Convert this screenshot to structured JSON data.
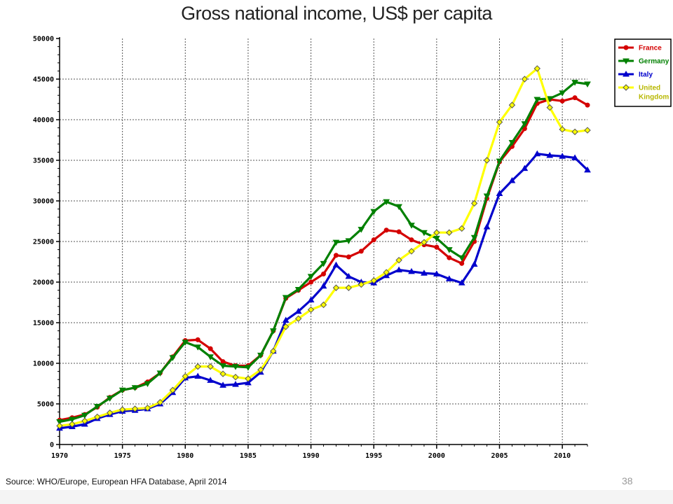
{
  "slide": {
    "title": "Gross national income, US$ per capita",
    "source": "Source: WHO/Europe, European HFA Database, April 2014",
    "page_number": "38"
  },
  "chart_data": {
    "type": "line",
    "title": "Gross national income, US$ per capita",
    "xlabel": "",
    "ylabel": "",
    "xlim": [
      1970,
      2012
    ],
    "ylim": [
      0,
      50000
    ],
    "x_ticks": [
      1970,
      1975,
      1980,
      1985,
      1990,
      1995,
      2000,
      2005,
      2010
    ],
    "y_ticks": [
      0,
      5000,
      10000,
      15000,
      20000,
      25000,
      30000,
      35000,
      40000,
      45000,
      50000
    ],
    "grid": true,
    "legend_position": "top-right",
    "x": [
      1970,
      1971,
      1972,
      1973,
      1974,
      1975,
      1976,
      1977,
      1978,
      1979,
      1980,
      1981,
      1982,
      1983,
      1984,
      1985,
      1986,
      1987,
      1988,
      1989,
      1990,
      1991,
      1992,
      1993,
      1994,
      1995,
      1996,
      1997,
      1998,
      1999,
      2000,
      2001,
      2002,
      2003,
      2004,
      2005,
      2006,
      2007,
      2008,
      2009,
      2010,
      2011,
      2012
    ],
    "series": [
      {
        "name": "France",
        "color": "#d40000",
        "marker": "circle",
        "values": [
          3000,
          3300,
          3700,
          4600,
          5800,
          6700,
          7000,
          7700,
          8800,
          10800,
          12800,
          12900,
          11800,
          10200,
          9700,
          9700,
          11000,
          14000,
          18000,
          19000,
          20000,
          21000,
          23300,
          23100,
          23800,
          25200,
          26400,
          26200,
          25200,
          24600,
          24300,
          23000,
          22300,
          25000,
          30300,
          34800,
          36700,
          38900,
          42000,
          42500,
          42300,
          42700,
          41800
        ]
      },
      {
        "name": "Germany",
        "color": "#008000",
        "marker": "triangle-down",
        "values": [
          2800,
          3100,
          3600,
          4700,
          5700,
          6700,
          7000,
          7500,
          8800,
          10700,
          12600,
          12000,
          10800,
          9700,
          9600,
          9500,
          11000,
          14000,
          18100,
          19100,
          20700,
          22300,
          24900,
          25100,
          26500,
          28700,
          29900,
          29300,
          27000,
          26100,
          25400,
          24000,
          23000,
          25500,
          30600,
          34900,
          37200,
          39500,
          42500,
          42600,
          43300,
          44600,
          44400
        ]
      },
      {
        "name": "Italy",
        "color": "#0000cc",
        "marker": "triangle-up",
        "values": [
          2000,
          2200,
          2500,
          3200,
          3700,
          4100,
          4200,
          4400,
          5000,
          6400,
          8200,
          8400,
          7900,
          7300,
          7400,
          7600,
          8900,
          11500,
          15300,
          16400,
          17800,
          19500,
          22100,
          20700,
          20000,
          19900,
          20800,
          21500,
          21300,
          21100,
          21000,
          20400,
          19900,
          22200,
          26800,
          30900,
          32500,
          34000,
          35800,
          35600,
          35500,
          35300,
          33800
        ]
      },
      {
        "name": "United Kingdom",
        "color": "#ffff00",
        "marker": "diamond",
        "values": [
          2300,
          2500,
          2900,
          3400,
          3900,
          4300,
          4400,
          4500,
          5200,
          6700,
          8400,
          9600,
          9600,
          8700,
          8300,
          8100,
          9200,
          11500,
          14500,
          15500,
          16600,
          17200,
          19300,
          19300,
          19700,
          20200,
          21200,
          22700,
          23800,
          24900,
          26100,
          26100,
          26600,
          29700,
          35000,
          39700,
          41800,
          45000,
          46300,
          41500,
          38800,
          38500,
          38700
        ]
      }
    ]
  },
  "legend": {
    "items": [
      {
        "label": "France",
        "color": "#d40000",
        "text_color": "#d40000",
        "marker": "circle"
      },
      {
        "label": "Germany",
        "color": "#008000",
        "text_color": "#008000",
        "marker": "triangle-down"
      },
      {
        "label": "Italy",
        "color": "#0000cc",
        "text_color": "#0000cc",
        "marker": "triangle-up"
      },
      {
        "label_lines": [
          "United",
          "Kingdom"
        ],
        "color": "#ffff00",
        "text_color": "#b8b800",
        "marker": "diamond"
      }
    ]
  }
}
